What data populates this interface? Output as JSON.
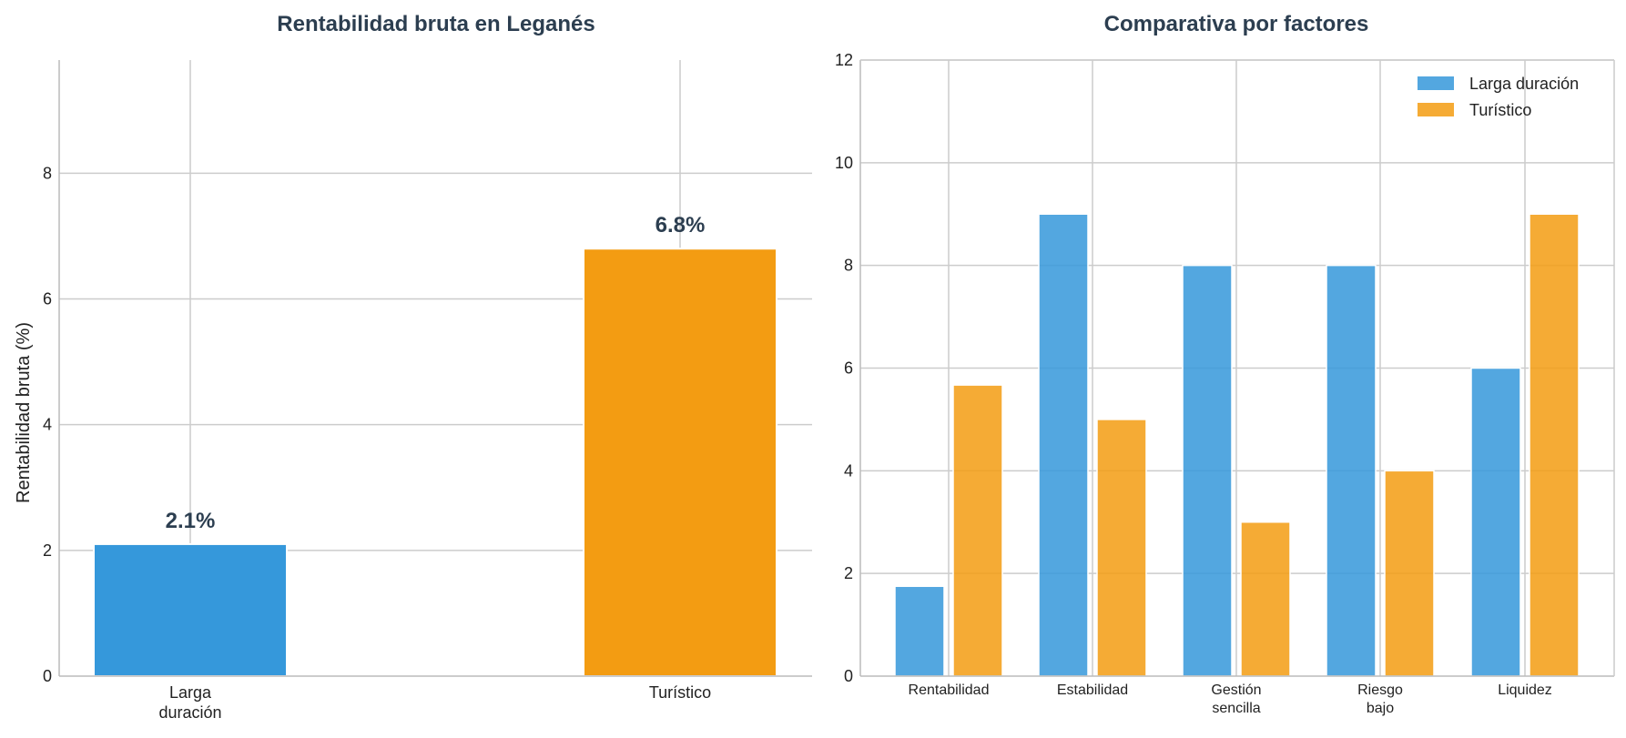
{
  "chart_data": [
    {
      "type": "bar",
      "title": "Rentabilidad bruta en Leganés",
      "ylabel": "Rentabilidad bruta (%)",
      "xlabel": "",
      "categories": [
        [
          "Larga",
          "duración"
        ],
        [
          "Turístico"
        ]
      ],
      "values": [
        2.1,
        6.8
      ],
      "value_labels": [
        "2.1%",
        "6.8%"
      ],
      "colors": [
        "#3598db",
        "#f39c12"
      ],
      "ylim": [
        0,
        9.8
      ],
      "yticks": [
        0,
        2,
        4,
        6,
        8
      ],
      "grid": true
    },
    {
      "type": "bar",
      "title": "Comparativa por factores",
      "categories": [
        [
          "Rentabilidad"
        ],
        [
          "Estabilidad"
        ],
        [
          "Gestión",
          "sencilla"
        ],
        [
          "Riesgo",
          "bajo"
        ],
        [
          "Liquidez"
        ]
      ],
      "series": [
        {
          "name": "Larga duración",
          "values": [
            1.75,
            9,
            8,
            8,
            6
          ],
          "color": "#3598db"
        },
        {
          "name": "Turístico",
          "values": [
            5.67,
            5,
            3,
            4,
            9
          ],
          "color": "#f39c12"
        }
      ],
      "ylim": [
        0,
        12
      ],
      "yticks": [
        0,
        2,
        4,
        6,
        8,
        10,
        12
      ],
      "legend_position": "top-right",
      "grid": true
    }
  ]
}
